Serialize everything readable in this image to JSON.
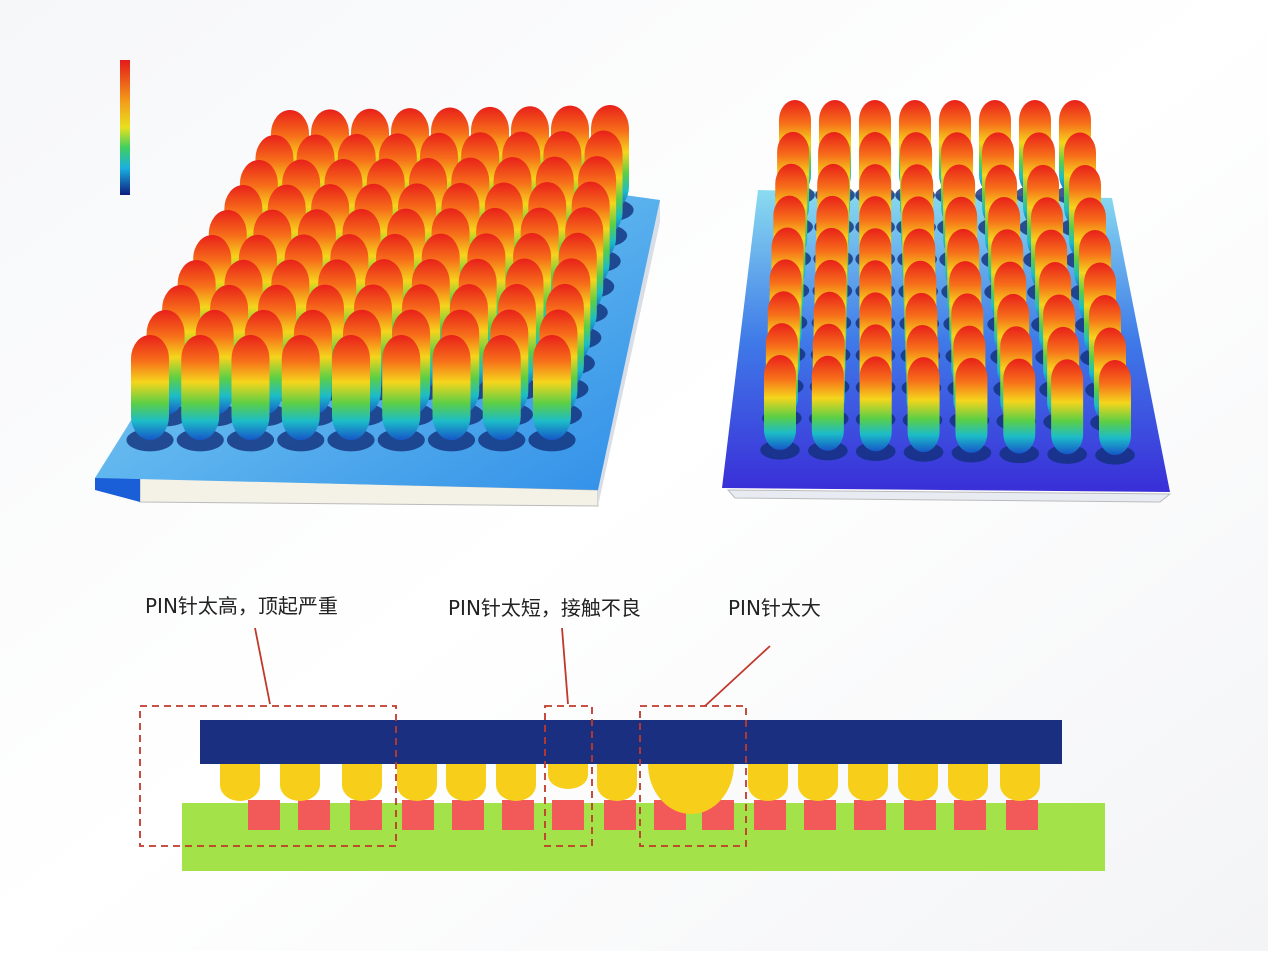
{
  "annotations": [
    "PIN针太高，顶起严重",
    "PIN针太短，接触不良",
    "PIN针太大"
  ]
}
